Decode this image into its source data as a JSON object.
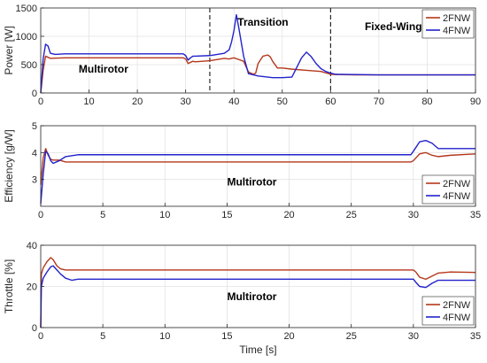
{
  "chart_data": [
    {
      "type": "line",
      "ylabel": "Power [W]",
      "xlabel": "",
      "xlim": [
        0,
        90
      ],
      "ylim": [
        0,
        1500
      ],
      "xticks": [
        0,
        10,
        20,
        30,
        40,
        50,
        60,
        70,
        80,
        90
      ],
      "yticks": [
        0,
        500,
        1000,
        1500
      ],
      "grid": true,
      "legend": "top-right",
      "annotations": [
        {
          "text": "Multirotor",
          "x": 13,
          "y": 420
        },
        {
          "text": "Transition",
          "x": 46,
          "y": 1250
        },
        {
          "text": "Fixed-Wing",
          "x": 73,
          "y": 1170
        }
      ],
      "vlines": [
        35,
        60
      ],
      "series": [
        {
          "name": "2FNW",
          "color": "#b5371b",
          "x": [
            0,
            0.5,
            1,
            1.5,
            2,
            3,
            5,
            10,
            20,
            29.5,
            30,
            30.5,
            31,
            31.5,
            32,
            35,
            38,
            39,
            40,
            41,
            42,
            43,
            44,
            44.5,
            45,
            46,
            47,
            47.5,
            48,
            49,
            50,
            52,
            55,
            58,
            60,
            61,
            65,
            70,
            80,
            90
          ],
          "y": [
            0,
            400,
            650,
            630,
            610,
            615,
            620,
            620,
            620,
            620,
            600,
            520,
            540,
            560,
            550,
            570,
            610,
            600,
            620,
            590,
            560,
            370,
            330,
            350,
            520,
            650,
            670,
            640,
            560,
            440,
            440,
            420,
            400,
            380,
            330,
            325,
            320,
            320,
            320,
            320
          ]
        },
        {
          "name": "4FNW",
          "color": "#2222cc",
          "x": [
            0,
            0.5,
            1,
            1.5,
            2,
            3,
            5,
            10,
            20,
            29.5,
            30,
            30.5,
            31,
            31.5,
            32,
            35,
            38,
            39,
            39.5,
            40,
            40.5,
            41,
            42,
            43,
            45,
            48,
            50,
            52,
            53,
            54,
            55,
            56,
            57,
            58,
            59,
            60,
            61,
            65,
            70,
            80,
            90
          ],
          "y": [
            0,
            600,
            860,
            830,
            700,
            680,
            690,
            690,
            690,
            690,
            660,
            580,
            620,
            650,
            650,
            660,
            700,
            760,
            900,
            1100,
            1380,
            1150,
            650,
            340,
            300,
            270,
            270,
            280,
            450,
            620,
            720,
            640,
            520,
            430,
            380,
            350,
            330,
            325,
            320,
            320,
            320
          ]
        }
      ]
    },
    {
      "type": "line",
      "ylabel": "Efficiency [g/W]",
      "xlabel": "",
      "xlim": [
        0,
        35
      ],
      "ylim": [
        2,
        5
      ],
      "xticks": [
        0,
        5,
        10,
        15,
        20,
        25,
        30,
        35
      ],
      "yticks": [
        3,
        4,
        5
      ],
      "grid": true,
      "legend": "bottom-right",
      "annotations": [
        {
          "text": "Multirotor",
          "x": 17,
          "y": 2.9
        }
      ],
      "series": [
        {
          "name": "2FNW",
          "color": "#b5371b",
          "x": [
            0,
            0.2,
            0.4,
            0.6,
            0.8,
            1,
            1.5,
            2,
            3,
            5,
            10,
            20,
            29.8,
            30,
            30.5,
            31,
            31.5,
            32,
            33,
            35
          ],
          "y": [
            2.8,
            3.8,
            4.15,
            3.9,
            3.75,
            3.72,
            3.72,
            3.65,
            3.65,
            3.65,
            3.65,
            3.65,
            3.65,
            3.7,
            3.95,
            4.0,
            3.9,
            3.85,
            3.9,
            3.95
          ]
        },
        {
          "name": "4FNW",
          "color": "#2222cc",
          "x": [
            0,
            0.2,
            0.4,
            0.6,
            0.8,
            1,
            1.5,
            2,
            3,
            5,
            10,
            20,
            29.8,
            30,
            30.5,
            31,
            31.5,
            32,
            33,
            35
          ],
          "y": [
            2.1,
            3.2,
            4.05,
            3.95,
            3.7,
            3.6,
            3.7,
            3.85,
            3.92,
            3.92,
            3.92,
            3.92,
            3.92,
            4.05,
            4.4,
            4.45,
            4.35,
            4.15,
            4.15,
            4.15
          ]
        }
      ]
    },
    {
      "type": "line",
      "ylabel": "Throttle [%]",
      "xlabel": "Time [s]",
      "xlim": [
        0,
        35
      ],
      "ylim": [
        0,
        40
      ],
      "xticks": [
        0,
        5,
        10,
        15,
        20,
        25,
        30,
        35
      ],
      "yticks": [
        0,
        20,
        40
      ],
      "grid": true,
      "legend": "bottom-right",
      "annotations": [
        {
          "text": "Multirotor",
          "x": 17,
          "y": 15
        }
      ],
      "series": [
        {
          "name": "2FNW",
          "color": "#b5371b",
          "x": [
            0,
            0.05,
            0.2,
            0.5,
            0.8,
            1,
            1.3,
            1.6,
            2,
            3,
            5,
            10,
            20,
            30,
            30.2,
            30.5,
            31,
            31.5,
            32,
            33,
            35
          ],
          "y": [
            0,
            26,
            29,
            32,
            34,
            33,
            30,
            28.5,
            28,
            28,
            28,
            28,
            28,
            28,
            27,
            24.5,
            23.5,
            25,
            26.5,
            27,
            26.8
          ]
        },
        {
          "name": "4FNW",
          "color": "#2222cc",
          "x": [
            0,
            0.05,
            0.2,
            0.5,
            0.8,
            1,
            1.3,
            1.6,
            2,
            2.5,
            3,
            5,
            10,
            20,
            30,
            30.2,
            30.5,
            31,
            31.5,
            32,
            33,
            35
          ],
          "y": [
            0,
            20,
            24,
            27,
            29.5,
            30,
            28,
            26,
            24,
            23,
            23.5,
            23.5,
            23.5,
            23.5,
            23.5,
            22,
            20,
            19.5,
            21.5,
            23,
            23,
            23
          ]
        }
      ]
    }
  ]
}
